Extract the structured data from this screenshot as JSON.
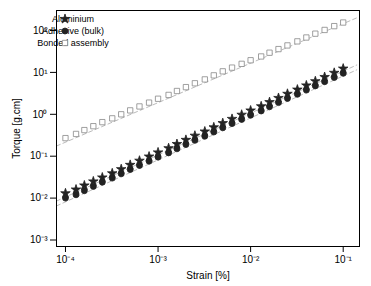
{
  "chart_data": {
    "type": "scatter",
    "title": "",
    "xlabel": "Strain [%]",
    "ylabel": "Torque [g.cm]",
    "log": true,
    "xlim": [
      8e-05,
      0.15
    ],
    "ylim": [
      0.0007,
      300.0
    ],
    "xticks": [
      {
        "value": 0.0001,
        "label": "10⁻⁴"
      },
      {
        "value": 0.001,
        "label": "10⁻³"
      },
      {
        "value": 0.01,
        "label": "10⁻²"
      },
      {
        "value": 0.1,
        "label": "10⁻¹"
      }
    ],
    "yticks": [
      {
        "value": 0.001,
        "label": "10⁻³"
      },
      {
        "value": 0.01,
        "label": "10⁻²"
      },
      {
        "value": 0.1,
        "label": "10⁻¹"
      },
      {
        "value": 1,
        "label": "10⁰"
      },
      {
        "value": 10,
        "label": "10¹"
      },
      {
        "value": 100,
        "label": "10²"
      }
    ],
    "grid": false,
    "legend": "upper left",
    "series": [
      {
        "name": "Aluminium",
        "marker": "star",
        "color": "#222222",
        "x": [
          0.0001,
          0.00013,
          0.00016,
          0.0002,
          0.00025,
          0.00032,
          0.0004,
          0.0005,
          0.00063,
          0.0008,
          0.001,
          0.0013,
          0.0016,
          0.002,
          0.0025,
          0.0032,
          0.004,
          0.005,
          0.0063,
          0.008,
          0.01,
          0.013,
          0.016,
          0.02,
          0.025,
          0.032,
          0.04,
          0.05,
          0.063,
          0.08,
          0.1
        ],
        "values": [
          0.013,
          0.016,
          0.02,
          0.025,
          0.031,
          0.039,
          0.049,
          0.062,
          0.078,
          0.098,
          0.123,
          0.155,
          0.195,
          0.245,
          0.308,
          0.388,
          0.488,
          0.615,
          0.775,
          0.975,
          1.23,
          1.55,
          1.95,
          2.45,
          3.08,
          3.88,
          4.88,
          6.15,
          7.75,
          9.75,
          12.3
        ],
        "trendline": {
          "x": [
            8e-05,
            0.14
          ],
          "y": [
            0.0085,
            15.0
          ],
          "color": "#bbbbbb",
          "line_style": "dashed"
        }
      },
      {
        "name": "Adhesive (bulk)",
        "marker": "circle",
        "color": "#222222",
        "x": [
          0.0001,
          0.00013,
          0.00016,
          0.0002,
          0.00025,
          0.00032,
          0.0004,
          0.0005,
          0.00063,
          0.0008,
          0.001,
          0.0013,
          0.0016,
          0.002,
          0.0025,
          0.0032,
          0.004,
          0.005,
          0.0063,
          0.008,
          0.01,
          0.013,
          0.016,
          0.02,
          0.025,
          0.032,
          0.04,
          0.05,
          0.063,
          0.08,
          0.1
        ],
        "values": [
          0.01,
          0.012,
          0.015,
          0.019,
          0.024,
          0.03,
          0.038,
          0.048,
          0.06,
          0.076,
          0.095,
          0.12,
          0.15,
          0.19,
          0.239,
          0.3,
          0.378,
          0.476,
          0.6,
          0.755,
          0.95,
          1.2,
          1.51,
          1.9,
          2.39,
          3.0,
          3.78,
          4.76,
          6.0,
          7.55,
          9.5
        ],
        "trendline": {
          "x": [
            8e-05,
            0.14
          ],
          "y": [
            0.0065,
            11.5
          ],
          "color": "#bbbbbb",
          "line_style": "dashed"
        }
      },
      {
        "name": "Bonded assembly",
        "marker": "open_square",
        "color": "#888888",
        "x": [
          0.0001,
          0.00013,
          0.00016,
          0.0002,
          0.00025,
          0.00032,
          0.0004,
          0.0005,
          0.00063,
          0.0008,
          0.001,
          0.0013,
          0.0016,
          0.002,
          0.0025,
          0.0032,
          0.004,
          0.005,
          0.0063,
          0.008,
          0.01,
          0.013,
          0.016,
          0.02,
          0.025,
          0.032,
          0.04,
          0.05,
          0.063,
          0.08,
          0.1
        ],
        "values": [
          0.27,
          0.34,
          0.42,
          0.52,
          0.65,
          0.8,
          1.0,
          1.24,
          1.54,
          1.9,
          2.35,
          2.9,
          3.6,
          4.45,
          5.5,
          6.8,
          8.5,
          10.6,
          13.0,
          16.0,
          19.5,
          24.0,
          29.5,
          36.0,
          44.0,
          55.0,
          68.0,
          84.0,
          103.0,
          127.0,
          155.0
        ],
        "trendline": {
          "x": [
            8e-05,
            0.14
          ],
          "y": [
            0.175,
            200.0
          ],
          "color": "#bbbbbb",
          "line_style": "dashed"
        }
      }
    ]
  }
}
